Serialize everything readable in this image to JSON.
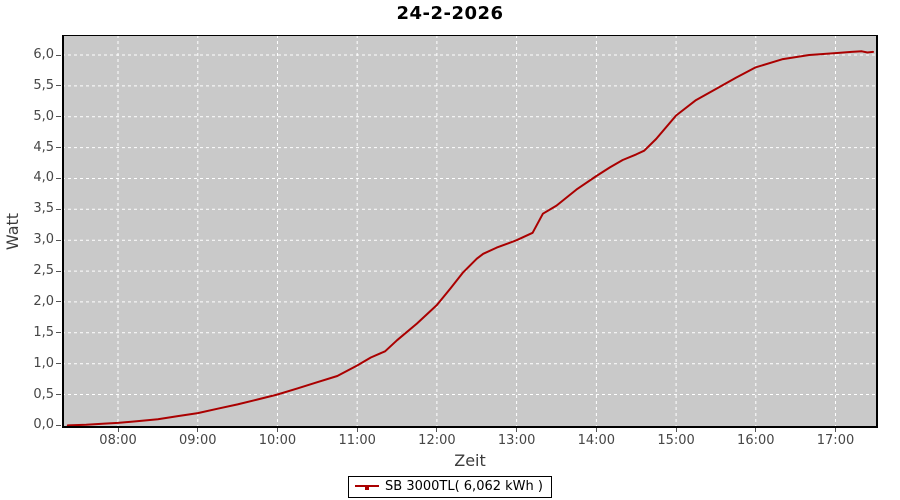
{
  "title": "24-2-2026",
  "axes": {
    "x_label": "Zeit",
    "y_label": "Watt"
  },
  "legend": {
    "label": "SB 3000TL( 6,062 kWh )"
  },
  "colors": {
    "series": "#aa0000",
    "plot_bg": "#c9c9c9",
    "grid": "#ffffff",
    "plot_border": "#000000",
    "tick_mark": "#545454",
    "tick_text": "#464646",
    "axis_text": "#3c3c3c",
    "title_text": "#000000",
    "page_bg": "#ffffff"
  },
  "chart_data": {
    "type": "line",
    "title": "24-2-2026",
    "xlabel": "Zeit",
    "ylabel": "Watt",
    "grid": true,
    "grid_style": "white-dashed",
    "legend_position": "bottom",
    "x_range_hours": [
      7.297,
      17.533
    ],
    "y_range": [
      -0.042,
      6.324
    ],
    "x_ticks": {
      "hours": [
        8,
        9,
        10,
        11,
        12,
        13,
        14,
        15,
        16,
        17
      ],
      "labels": [
        "08:00",
        "09:00",
        "10:00",
        "11:00",
        "12:00",
        "13:00",
        "14:00",
        "15:00",
        "16:00",
        "17:00"
      ]
    },
    "y_ticks": {
      "values": [
        0,
        0.5,
        1,
        1.5,
        2,
        2.5,
        3,
        3.5,
        4,
        4.5,
        5,
        5.5,
        6
      ],
      "labels": [
        "0,0",
        "0,5",
        "1,0",
        "1,5",
        "2,0",
        "2,5",
        "3,0",
        "3,5",
        "4,0",
        "4,5",
        "5,0",
        "5,5",
        "6,0"
      ]
    },
    "series": [
      {
        "name": "SB 3000TL( 6,062 kWh )",
        "color": "#aa0000",
        "total_energy_kwh": "6,062",
        "points_hour_value": [
          [
            7.37,
            0.0
          ],
          [
            7.6,
            0.01
          ],
          [
            7.83,
            0.03
          ],
          [
            8.0,
            0.04
          ],
          [
            8.25,
            0.07
          ],
          [
            8.5,
            0.1
          ],
          [
            8.75,
            0.15
          ],
          [
            9.0,
            0.2
          ],
          [
            9.25,
            0.27
          ],
          [
            9.5,
            0.34
          ],
          [
            9.75,
            0.42
          ],
          [
            10.0,
            0.5
          ],
          [
            10.25,
            0.6
          ],
          [
            10.5,
            0.7
          ],
          [
            10.75,
            0.8
          ],
          [
            11.0,
            0.97
          ],
          [
            11.17,
            1.1
          ],
          [
            11.35,
            1.2
          ],
          [
            11.5,
            1.38
          ],
          [
            11.75,
            1.65
          ],
          [
            12.0,
            1.95
          ],
          [
            12.17,
            2.22
          ],
          [
            12.33,
            2.48
          ],
          [
            12.5,
            2.7
          ],
          [
            12.58,
            2.78
          ],
          [
            12.75,
            2.88
          ],
          [
            13.0,
            3.0
          ],
          [
            13.2,
            3.12
          ],
          [
            13.33,
            3.43
          ],
          [
            13.5,
            3.56
          ],
          [
            13.75,
            3.82
          ],
          [
            14.0,
            4.04
          ],
          [
            14.17,
            4.18
          ],
          [
            14.33,
            4.3
          ],
          [
            14.5,
            4.39
          ],
          [
            14.6,
            4.45
          ],
          [
            14.75,
            4.64
          ],
          [
            15.0,
            5.02
          ],
          [
            15.25,
            5.27
          ],
          [
            15.5,
            5.45
          ],
          [
            15.75,
            5.63
          ],
          [
            16.0,
            5.8
          ],
          [
            16.33,
            5.93
          ],
          [
            16.67,
            6.0
          ],
          [
            17.0,
            6.03
          ],
          [
            17.2,
            6.05
          ],
          [
            17.33,
            6.06
          ],
          [
            17.4,
            6.04
          ],
          [
            17.47,
            6.05
          ]
        ]
      }
    ]
  }
}
